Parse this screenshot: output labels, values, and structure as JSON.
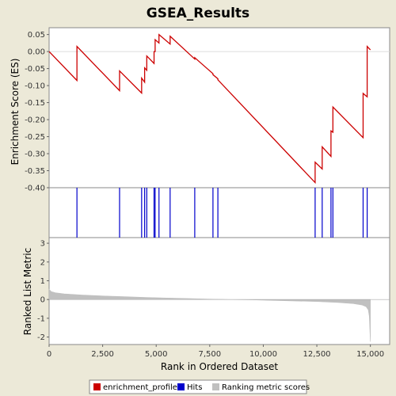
{
  "chart_data": {
    "type": "line",
    "title": "GSEA_Results",
    "colors": {
      "enrichment_profile": "#CC0000",
      "hits": "#0000CC",
      "ranking_metric": "#C0C0C0"
    },
    "panels": {
      "es": {
        "ylabel": "Enrichment Score (ES)",
        "ylim": [
          -0.4,
          0.07
        ],
        "yticks": [
          "0.05",
          "0.00",
          "-0.05",
          "-0.10",
          "-0.15",
          "-0.20",
          "-0.25",
          "-0.30",
          "-0.35",
          "-0.40"
        ],
        "ytick_values": [
          0.05,
          0.0,
          -0.05,
          -0.1,
          -0.15,
          -0.2,
          -0.25,
          -0.3,
          -0.35,
          -0.4
        ],
        "series": [
          {
            "name": "enrichment_profile",
            "points": [
              [
                0,
                0.0
              ],
              [
                1300,
                -0.085
              ],
              [
                1300,
                0.015
              ],
              [
                3290,
                -0.115
              ],
              [
                3290,
                -0.057
              ],
              [
                4320,
                -0.122
              ],
              [
                4320,
                -0.078
              ],
              [
                4460,
                -0.09
              ],
              [
                4460,
                -0.048
              ],
              [
                4560,
                -0.055
              ],
              [
                4560,
                -0.013
              ],
              [
                4900,
                -0.035
              ],
              [
                4900,
                0.0
              ],
              [
                4950,
                0.0
              ],
              [
                4950,
                0.035
              ],
              [
                5130,
                0.025
              ],
              [
                5130,
                0.05
              ],
              [
                5650,
                0.022
              ],
              [
                5650,
                0.045
              ],
              [
                6800,
                -0.022
              ],
              [
                6800,
                -0.018
              ],
              [
                7650,
                -0.065
              ],
              [
                7650,
                -0.068
              ],
              [
                7880,
                -0.08
              ],
              [
                7880,
                -0.083
              ],
              [
                12420,
                -0.385
              ],
              [
                12420,
                -0.325
              ],
              [
                12750,
                -0.345
              ],
              [
                12750,
                -0.28
              ],
              [
                13160,
                -0.308
              ],
              [
                13160,
                -0.233
              ],
              [
                13250,
                -0.237
              ],
              [
                13250,
                -0.163
              ],
              [
                14660,
                -0.253
              ],
              [
                14660,
                -0.123
              ],
              [
                14850,
                -0.133
              ],
              [
                14850,
                0.015
              ],
              [
                15000,
                0.005
              ]
            ]
          }
        ]
      },
      "hits": {
        "positions": [
          1300,
          3290,
          4320,
          4460,
          4560,
          4900,
          4950,
          5130,
          5650,
          6800,
          7650,
          7880,
          12420,
          12750,
          13160,
          13250,
          14660,
          14850
        ]
      },
      "metric": {
        "ylabel": "Ranked List Metric",
        "ylim": [
          -2.4,
          3.3
        ],
        "yticks": [
          "3",
          "2",
          "1",
          "0",
          "-1",
          "-2"
        ],
        "ytick_values": [
          3,
          2,
          1,
          0,
          -1,
          -2
        ],
        "profile": [
          [
            0,
            0.55
          ],
          [
            100,
            0.42
          ],
          [
            300,
            0.36
          ],
          [
            700,
            0.3
          ],
          [
            1500,
            0.24
          ],
          [
            2500,
            0.19
          ],
          [
            3500,
            0.15
          ],
          [
            4500,
            0.11
          ],
          [
            5500,
            0.08
          ],
          [
            6500,
            0.05
          ],
          [
            7500,
            0.02
          ],
          [
            8500,
            0.0
          ],
          [
            9500,
            -0.02
          ],
          [
            10500,
            -0.05
          ],
          [
            11500,
            -0.08
          ],
          [
            12500,
            -0.11
          ],
          [
            13500,
            -0.16
          ],
          [
            14200,
            -0.22
          ],
          [
            14600,
            -0.29
          ],
          [
            14800,
            -0.38
          ],
          [
            14900,
            -0.55
          ],
          [
            14950,
            -0.9
          ],
          [
            15000,
            -2.25
          ]
        ]
      }
    },
    "xaxis": {
      "label": "Rank in Ordered Dataset",
      "xlim": [
        0,
        15900
      ],
      "ticks": [
        "0",
        "2,500",
        "5,000",
        "7,500",
        "10,000",
        "12,500",
        "15,000"
      ],
      "tick_values": [
        0,
        2500,
        5000,
        7500,
        10000,
        12500,
        15000
      ]
    },
    "legend": {
      "placement": "bottom",
      "items": [
        {
          "label": "enrichment_profile",
          "color": "#CC0000"
        },
        {
          "label": "Hits",
          "color": "#0000CC"
        },
        {
          "label": "Ranking metric scores",
          "color": "#C0C0C0"
        }
      ]
    }
  }
}
